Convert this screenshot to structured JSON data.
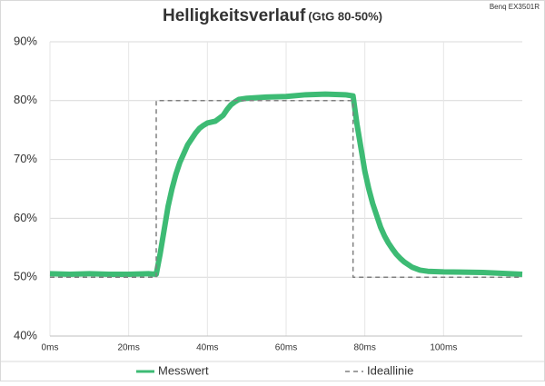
{
  "chart_data": {
    "type": "line",
    "title": "Helligkeitsverlauf",
    "subtitle": "(GtG 80-50%)",
    "annotation": "Benq EX3501R",
    "xlim": [
      0,
      120
    ],
    "ylim": [
      40,
      90
    ],
    "xticks": [
      {
        "value": 0,
        "label": "0ms"
      },
      {
        "value": 20,
        "label": "20ms"
      },
      {
        "value": 40,
        "label": "40ms"
      },
      {
        "value": 60,
        "label": "60ms"
      },
      {
        "value": 80,
        "label": "80ms"
      },
      {
        "value": 100,
        "label": "100ms"
      }
    ],
    "yticks": [
      {
        "value": 40,
        "label": "40%"
      },
      {
        "value": 50,
        "label": "50%"
      },
      {
        "value": 60,
        "label": "60%"
      },
      {
        "value": 70,
        "label": "70%"
      },
      {
        "value": 80,
        "label": "80%"
      },
      {
        "value": 90,
        "label": "90%"
      }
    ],
    "grid": true,
    "legend": "bottom",
    "series": [
      {
        "name": "Messwert",
        "color": "#3dbb74",
        "x": [
          0,
          5,
          10,
          15,
          20,
          25,
          27,
          28,
          29,
          30,
          31,
          32,
          33,
          34,
          35,
          36,
          37,
          38,
          39,
          40,
          42,
          43,
          44,
          45,
          46,
          47,
          48,
          50,
          55,
          60,
          65,
          70,
          75,
          77,
          78,
          79,
          80,
          81,
          82,
          83,
          84,
          85,
          86,
          87,
          88,
          89,
          90,
          92,
          94,
          96,
          100,
          110,
          120
        ],
        "values": [
          50.6,
          50.5,
          50.6,
          50.5,
          50.5,
          50.6,
          50.5,
          54,
          58,
          62,
          65,
          67.5,
          69.5,
          71,
          72.5,
          73.5,
          74.5,
          75.3,
          75.8,
          76.2,
          76.5,
          77,
          77.5,
          78.5,
          79.3,
          79.8,
          80.2,
          80.4,
          80.6,
          80.7,
          81,
          81.1,
          81,
          80.8,
          76,
          72,
          68,
          65,
          62.5,
          60.5,
          58.5,
          57,
          55.8,
          54.8,
          53.9,
          53.2,
          52.6,
          51.7,
          51.2,
          51,
          50.9,
          50.8,
          50.5
        ]
      },
      {
        "name": "Ideallinie",
        "color": "#808080",
        "dashed": true,
        "x": [
          0,
          27,
          27,
          77,
          77,
          120
        ],
        "values": [
          50,
          50,
          80,
          80,
          50,
          50
        ]
      }
    ]
  }
}
